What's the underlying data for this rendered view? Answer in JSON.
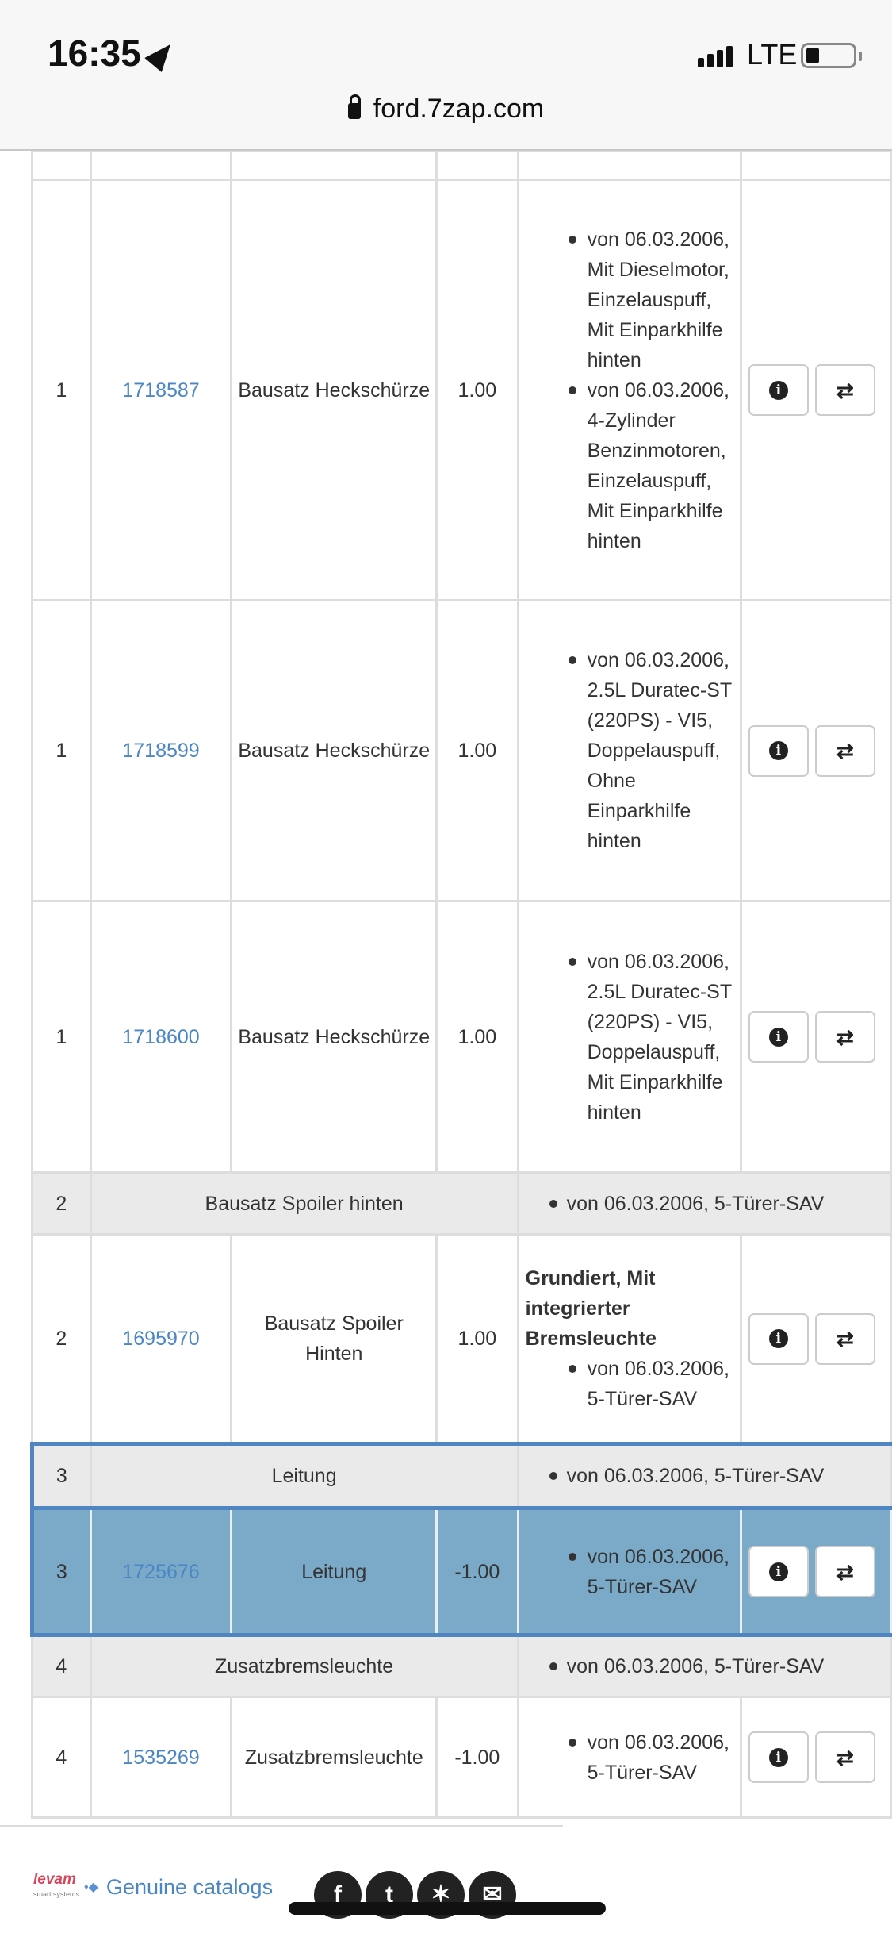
{
  "status": {
    "time": "16:35",
    "network": "LTE",
    "battery_level": 0.2
  },
  "browser": {
    "url": "ford.7zap.com"
  },
  "rows": [
    {
      "type": "part",
      "pos": "1",
      "number": "1718587",
      "name": "Bausatz Heckschürze",
      "qty": "1.00",
      "notes": [
        "von 06.03.2006, Mit Dieselmotor, Einzelauspuff, Mit Einparkhilfe hinten",
        "von 06.03.2006, 4-Zylinder Benzinmotoren, Einzelauspuff, Mit Einparkhilfe hinten"
      ]
    },
    {
      "type": "part",
      "pos": "1",
      "number": "1718599",
      "name": "Bausatz Heckschürze",
      "qty": "1.00",
      "notes": [
        "von 06.03.2006, 2.5L Duratec-ST (220PS) - VI5, Doppelauspuff, Ohne Einparkhilfe hinten"
      ]
    },
    {
      "type": "part",
      "pos": "1",
      "number": "1718600",
      "name": "Bausatz Heckschürze",
      "qty": "1.00",
      "notes": [
        "von 06.03.2006, 2.5L Duratec-ST (220PS) - VI5, Doppelauspuff, Mit Einparkhilfe hinten"
      ]
    },
    {
      "type": "group",
      "pos": "2",
      "name": "Bausatz Spoiler hinten",
      "note": "von 06.03.2006, 5-Türer-SAV"
    },
    {
      "type": "part",
      "pos": "2",
      "number": "1695970",
      "name": "Bausatz Spoiler Hinten",
      "qty": "1.00",
      "bold": "Grundiert, Mit integrierter Bremsleuchte",
      "notes": [
        "von 06.03.2006, 5-Türer-SAV"
      ]
    },
    {
      "type": "group",
      "pos": "3",
      "name": "Leitung",
      "note": "von 06.03.2006, 5-Türer-SAV",
      "selected": true
    },
    {
      "type": "part",
      "pos": "3",
      "number": "1725676",
      "name": "Leitung",
      "qty": "-1.00",
      "notes": [
        "von 06.03.2006, 5-Türer-SAV"
      ],
      "selected": true
    },
    {
      "type": "group",
      "pos": "4",
      "name": "Zusatzbremsleuchte",
      "note": "von 06.03.2006, 5-Türer-SAV"
    },
    {
      "type": "part",
      "pos": "4",
      "number": "1535269",
      "name": "Zusatzbremsleuchte",
      "qty": "-1.00",
      "notes": [
        "von 06.03.2006, 5-Türer-SAV"
      ]
    }
  ],
  "footer": {
    "logo": "levam",
    "logo_sub": "smart systems",
    "link": "Genuine catalogs",
    "social": [
      "facebook",
      "twitter",
      "pin",
      "email"
    ]
  },
  "colors": {
    "link": "#4a86c6",
    "selected_row": "#7aaac8",
    "selected_border": "#4f86c1"
  }
}
